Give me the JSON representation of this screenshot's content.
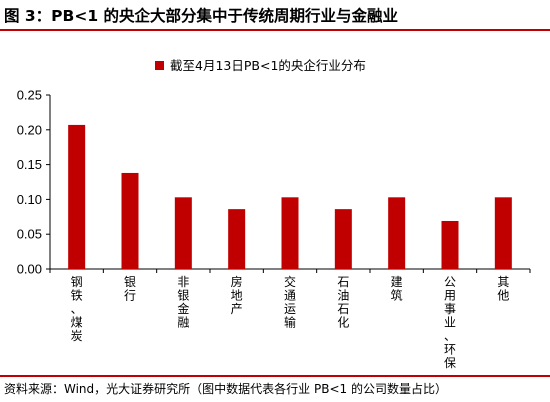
{
  "header": {
    "title": "图 3：PB<1 的央企大部分集中于传统周期行业与金融业"
  },
  "footer": {
    "source": "资料来源：Wind，光大证券研究所（图中数据代表各行业 PB<1 的公司数量占比）"
  },
  "colors": {
    "bar": "#c00000",
    "rule": "#c00000"
  },
  "chart_data": {
    "type": "bar",
    "categories": [
      "钢铁、煤炭",
      "银行",
      "非银金融",
      "房地产",
      "交通运输",
      "石油石化",
      "建筑",
      "公用事业、环保",
      "其他"
    ],
    "series": [
      {
        "name": "截至4月13日PB<1的央企行业分布",
        "values": [
          0.207,
          0.138,
          0.103,
          0.086,
          0.103,
          0.086,
          0.103,
          0.069,
          0.103
        ]
      }
    ],
    "ylim": [
      0,
      0.25
    ],
    "yticks": [
      "0.00",
      "0.05",
      "0.10",
      "0.15",
      "0.20",
      "0.25"
    ],
    "grid": false,
    "legend_position": "top-center"
  }
}
